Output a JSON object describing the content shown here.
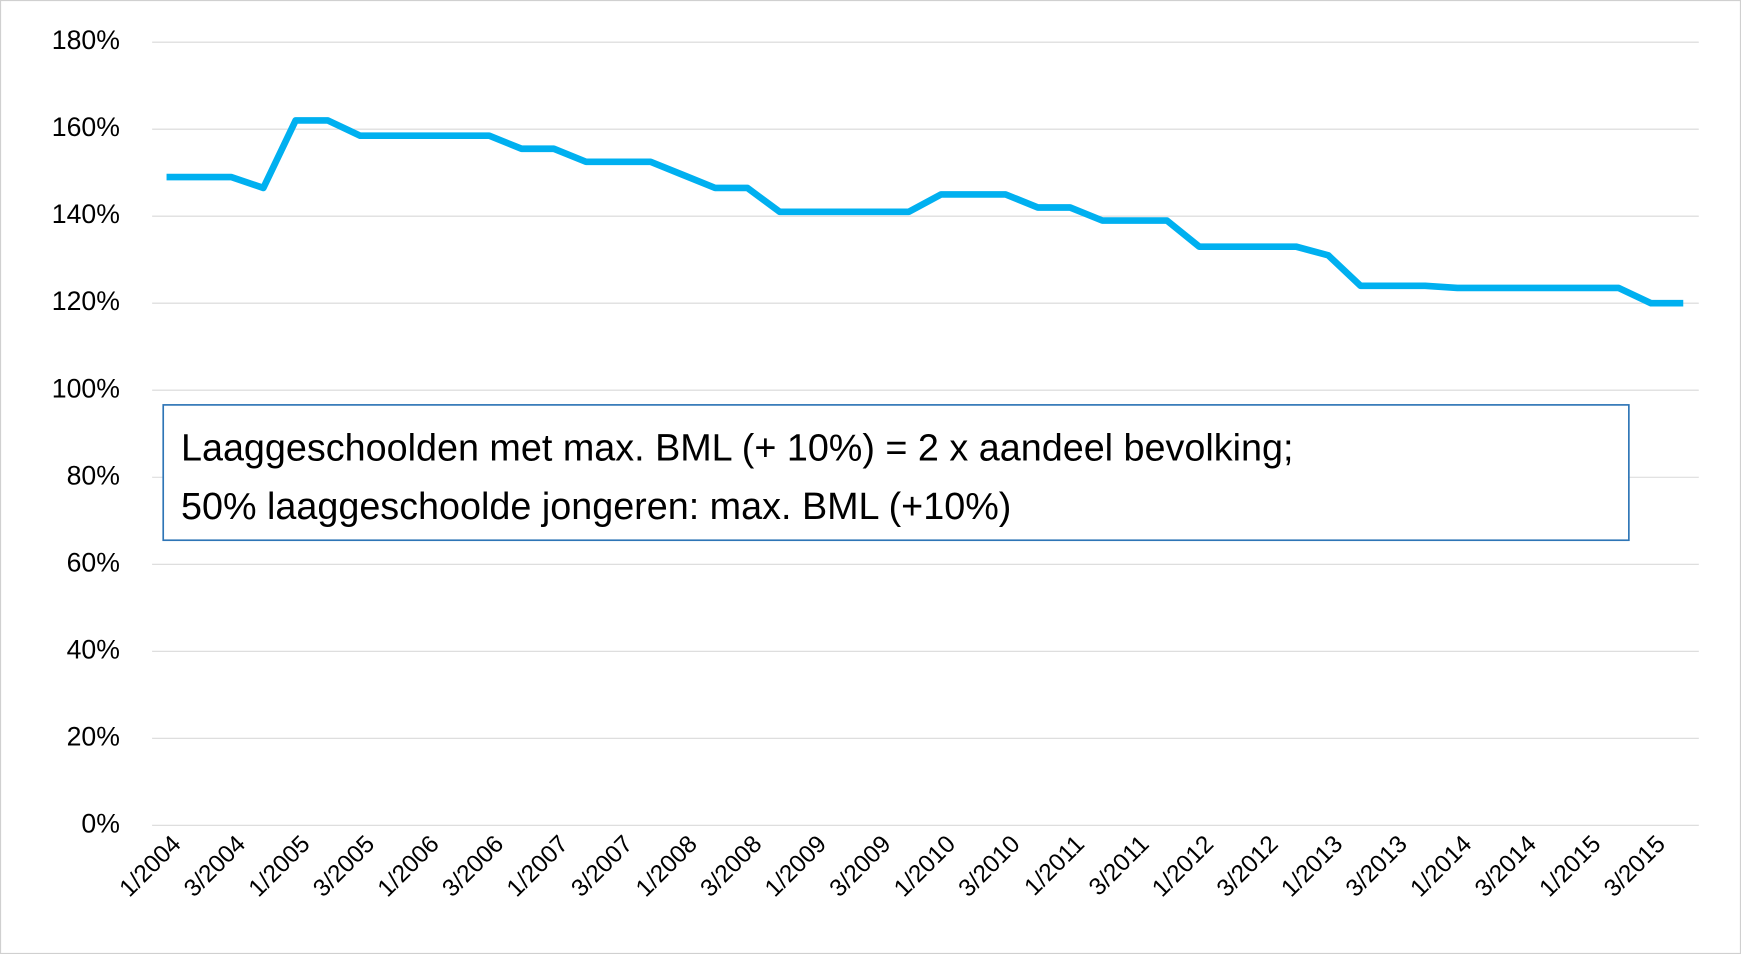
{
  "chart_data": {
    "type": "line",
    "categories": [
      "1/2004",
      null,
      "3/2004",
      null,
      "1/2005",
      null,
      "3/2005",
      null,
      "1/2006",
      null,
      "3/2006",
      null,
      "1/2007",
      null,
      "3/2007",
      null,
      "1/2008",
      null,
      "3/2008",
      null,
      "1/2009",
      null,
      "3/2009",
      null,
      "1/2010",
      null,
      "3/2010",
      null,
      "1/2011",
      null,
      "3/2011",
      null,
      "1/2012",
      null,
      "3/2012",
      null,
      "1/2013",
      null,
      "3/2013",
      null,
      "1/2014",
      null,
      "3/2014",
      null,
      "1/2015",
      null,
      "3/2015",
      null
    ],
    "series": [
      {
        "color": "#00b0f0",
        "values": [
          149,
          149,
          149,
          146.5,
          162,
          162,
          158.5,
          158.5,
          158.5,
          158.5,
          158.5,
          155.5,
          155.5,
          152.5,
          152.5,
          152.5,
          149.5,
          146.5,
          146.5,
          141,
          141,
          141,
          141,
          141,
          145,
          145,
          145,
          142,
          142,
          139,
          139,
          139,
          133,
          133,
          133,
          133,
          131,
          124,
          124,
          124,
          123.5,
          123.5,
          123.5,
          123.5,
          123.5,
          123.5,
          120,
          120
        ]
      }
    ],
    "ylim": [
      0,
      180
    ],
    "yticks": [
      {
        "value": 0,
        "label": "0%"
      },
      {
        "value": 20,
        "label": "20%"
      },
      {
        "value": 40,
        "label": "40%"
      },
      {
        "value": 60,
        "label": "60%"
      },
      {
        "value": 80,
        "label": "80%"
      },
      {
        "value": 100,
        "label": "100%"
      },
      {
        "value": 120,
        "label": "120%"
      },
      {
        "value": 140,
        "label": "140%"
      },
      {
        "value": 160,
        "label": "160%"
      },
      {
        "value": 180,
        "label": "180%"
      }
    ],
    "grid": true,
    "annotation": [
      "Laaggeschoolden met max. BML (+ 10%) = 2 x aandeel bevolking;",
      "50% laaggeschoolde jongeren: max. BML (+10%)"
    ]
  }
}
